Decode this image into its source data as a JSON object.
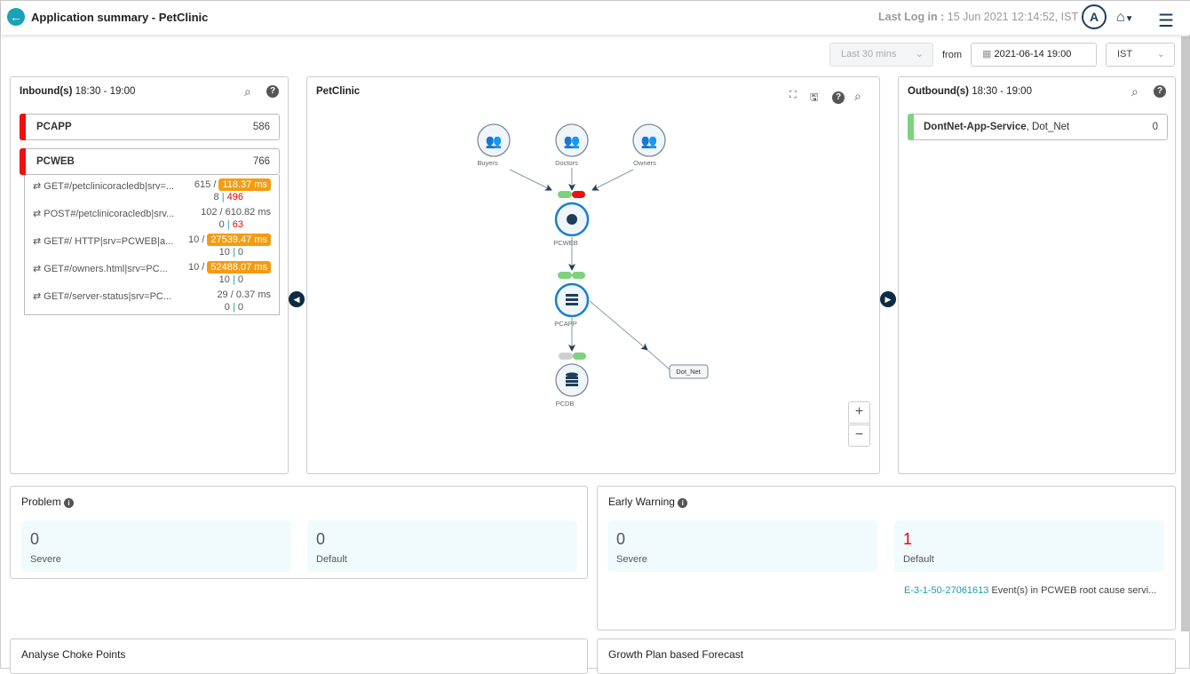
{
  "header": {
    "title": "Application summary - PetClinic",
    "last_login_label": "Last Log in :",
    "last_login_value": "15 Jun 2021 12:14:52, IST",
    "avatar": "A"
  },
  "toolbar": {
    "range": "Last 30 mins",
    "from_label": "from",
    "from_value": "2021-06-14 19:00",
    "timezone": "IST"
  },
  "inbound": {
    "title": "Inbound(s)",
    "time": "18:30 - 19:00",
    "services": [
      {
        "name": "PCAPP",
        "count": "586",
        "color": "#ee1111"
      },
      {
        "name": "PCWEB",
        "count": "766",
        "color": "#ee1111"
      }
    ],
    "transactions": [
      {
        "name": "GET#/petclinicoracledb|srv=...",
        "count": "615 /",
        "time": "118.37 ms",
        "highlight": true,
        "a": "8",
        "b": "496",
        "b_red": true
      },
      {
        "name": "POST#/petclinicoracledb|srv...",
        "count": "102 /",
        "time": "610.82 ms",
        "highlight": false,
        "a": "0",
        "b": "63",
        "b_red": true
      },
      {
        "name": "GET#/ HTTP|srv=PCWEB|a...",
        "count": "10 /",
        "time": "27539.47 ms",
        "highlight": true,
        "a": "10",
        "b": "0",
        "b_red": false
      },
      {
        "name": "GET#/owners.html|srv=PC...",
        "count": "10 /",
        "time": "52488.07 ms",
        "highlight": true,
        "a": "10",
        "b": "0",
        "b_red": false
      },
      {
        "name": "GET#/server-status|srv=PC...",
        "count": "29 /",
        "time": "0.37 ms",
        "highlight": false,
        "a": "0",
        "b": "0",
        "b_red": false
      }
    ]
  },
  "topology": {
    "title": "PetClinic",
    "nodes": {
      "buyers": "Buyers",
      "doctors": "Doctors",
      "owners": "Owners",
      "pcweb": "PCWEB",
      "pcapp": "PCAPP",
      "pcdb": "PCDB",
      "dotnet": "Dot_Net"
    },
    "zoom_in": "+",
    "zoom_out": "−"
  },
  "outbound": {
    "title": "Outbound(s)",
    "time": "18:30 - 19:00",
    "service_name": "DontNet-App-Service",
    "service_type": ", Dot_Net",
    "count": "0",
    "color": "#7dd37d"
  },
  "problem": {
    "title": "Problem",
    "severe": "0",
    "severe_label": "Severe",
    "default": "0",
    "default_label": "Default"
  },
  "early_warning": {
    "title": "Early Warning",
    "severe": "0",
    "severe_label": "Severe",
    "default": "1",
    "default_label": "Default",
    "event_id": "E-3-1-50-27061613",
    "event_text": "Event(s) in PCWEB root cause servi..."
  },
  "bottom": {
    "choke": "Analyse Choke Points",
    "growth": "Growth Plan based Forecast"
  }
}
